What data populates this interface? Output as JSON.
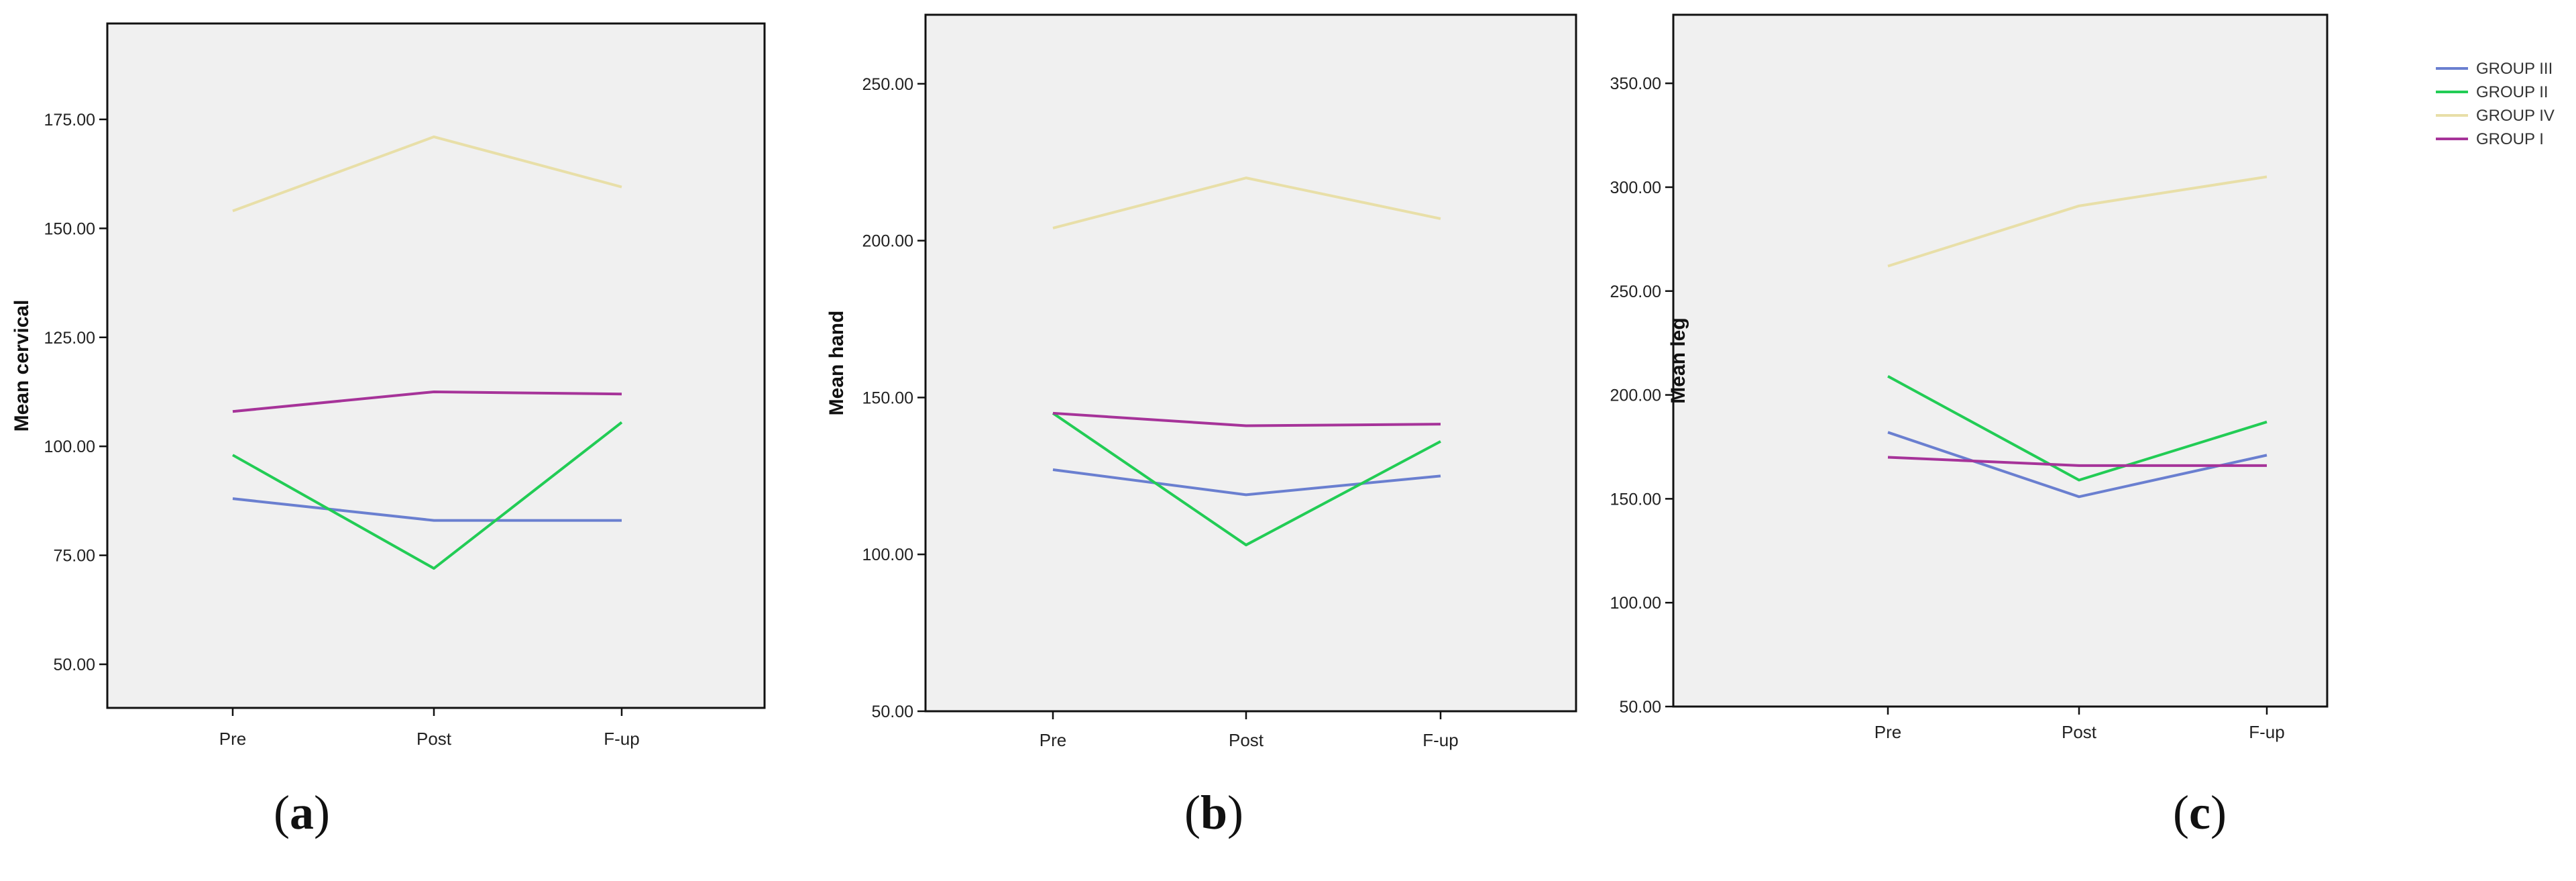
{
  "colors": {
    "GROUP III": "#6a7fd0",
    "GROUP II": "#22cc55",
    "GROUP IV": "#e8dfa8",
    "GROUP I": "#a63399",
    "plot_bg": "#f0f0f0"
  },
  "legend": {
    "placement": "top-right",
    "entries": [
      "GROUP III",
      "GROUP II",
      "GROUP IV",
      "GROUP I"
    ]
  },
  "chart_data": [
    {
      "type": "line",
      "panel_label": "a",
      "ylabel": "Mean cervical",
      "categories": [
        "Pre",
        "Post",
        "F-up"
      ],
      "ylim": [
        40,
        197
      ],
      "yticks": [
        50,
        75,
        100,
        125,
        150,
        175
      ],
      "ytick_labels": [
        "50.00",
        "75.00",
        "100.00",
        "125.00",
        "150.00",
        "175.00"
      ],
      "series": [
        {
          "name": "GROUP III",
          "values": [
            88,
            83,
            83
          ]
        },
        {
          "name": "GROUP II",
          "values": [
            98,
            72,
            105.5
          ]
        },
        {
          "name": "GROUP IV",
          "values": [
            154,
            171,
            159.5
          ]
        },
        {
          "name": "GROUP I",
          "values": [
            108,
            112.5,
            112
          ]
        }
      ]
    },
    {
      "type": "line",
      "panel_label": "b",
      "ylabel": "Mean hand",
      "categories": [
        "Pre",
        "Post",
        "F-up"
      ],
      "ylim": [
        50,
        272
      ],
      "yticks": [
        50,
        100,
        150,
        200,
        250
      ],
      "ytick_labels": [
        "50.00",
        "100.00",
        "150.00",
        "200.00",
        "250.00"
      ],
      "series": [
        {
          "name": "GROUP III",
          "values": [
            127,
            119,
            125
          ]
        },
        {
          "name": "GROUP II",
          "values": [
            145,
            103,
            136
          ]
        },
        {
          "name": "GROUP IV",
          "values": [
            204,
            220,
            207
          ]
        },
        {
          "name": "GROUP I",
          "values": [
            145,
            141,
            141.5
          ]
        }
      ]
    },
    {
      "type": "line",
      "panel_label": "c",
      "ylabel": "Mean leg",
      "categories": [
        "Pre",
        "Post",
        "F-up"
      ],
      "ylim": [
        50,
        383
      ],
      "yticks": [
        50,
        100,
        150,
        200,
        250,
        300,
        350
      ],
      "ytick_labels": [
        "50.00",
        "100.00",
        "150.00",
        "200.00",
        "250.00",
        "300.00",
        "350.00"
      ],
      "series": [
        {
          "name": "GROUP III",
          "values": [
            182,
            151,
            171
          ]
        },
        {
          "name": "GROUP II",
          "values": [
            209,
            159,
            187
          ]
        },
        {
          "name": "GROUP IV",
          "values": [
            262,
            291,
            305
          ]
        },
        {
          "name": "GROUP I",
          "values": [
            170,
            166,
            166
          ]
        }
      ]
    }
  ]
}
